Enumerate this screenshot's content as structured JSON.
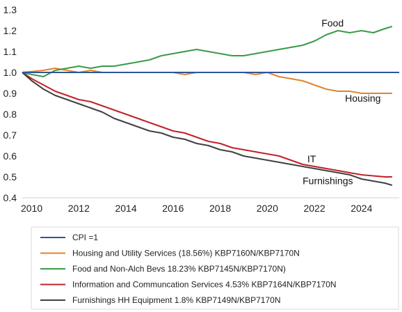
{
  "chart_data": {
    "type": "line",
    "ylim": [
      0.4,
      1.3
    ],
    "xlim": [
      2009.6,
      2025.6
    ],
    "yticks": [
      "0.4",
      "0.5",
      "0.6",
      "0.7",
      "0.8",
      "0.9",
      "1.0",
      "1.1",
      "1.2",
      "1.3"
    ],
    "xticks": [
      "2010",
      "2012",
      "2014",
      "2016",
      "2018",
      "2020",
      "2022",
      "2024"
    ],
    "grid": false,
    "legend_position": "bottom",
    "annotations": [
      {
        "text": "Food",
        "x": 2022.3,
        "y": 1.22
      },
      {
        "text": "Housing",
        "x": 2023.3,
        "y": 0.86
      },
      {
        "text": "IT",
        "x": 2021.7,
        "y": 0.57
      },
      {
        "text": "Furnishings",
        "x": 2021.5,
        "y": 0.465
      }
    ],
    "series": [
      {
        "name": "CPI =1",
        "color": "#2f5597",
        "x": [
          2009.6,
          2025.6
        ],
        "y": [
          1.0,
          1.0
        ]
      },
      {
        "name": "Housing and Utility Services  (18.56%) KBP7160N/KBP7170N",
        "color": "#e0842e",
        "x": [
          2009.6,
          2010.5,
          2011.0,
          2011.5,
          2012.0,
          2012.5,
          2013.0,
          2014.0,
          2015.0,
          2016.0,
          2016.5,
          2017.0,
          2018.0,
          2019.0,
          2019.5,
          2020.0,
          2020.5,
          2021.0,
          2021.5,
          2022.0,
          2022.5,
          2023.0,
          2023.5,
          2024.0,
          2024.5,
          2025.0,
          2025.3
        ],
        "y": [
          1.0,
          1.01,
          1.02,
          1.01,
          1.0,
          1.01,
          1.0,
          1.0,
          1.0,
          1.0,
          0.99,
          1.0,
          1.0,
          1.0,
          0.99,
          1.0,
          0.98,
          0.97,
          0.96,
          0.94,
          0.92,
          0.91,
          0.91,
          0.9,
          0.9,
          0.9,
          0.9
        ]
      },
      {
        "name": "Food and Non-Alch Bevs 18.23% KBP7145N/KBP7170N)",
        "color": "#3a9a47",
        "x": [
          2009.6,
          2010.0,
          2010.5,
          2011.0,
          2011.5,
          2012.0,
          2012.5,
          2013.0,
          2013.5,
          2014.0,
          2014.5,
          2015.0,
          2015.5,
          2016.0,
          2016.5,
          2017.0,
          2017.5,
          2018.0,
          2018.5,
          2019.0,
          2019.5,
          2020.0,
          2020.5,
          2021.0,
          2021.5,
          2022.0,
          2022.5,
          2023.0,
          2023.5,
          2024.0,
          2024.5,
          2025.0,
          2025.3
        ],
        "y": [
          1.0,
          0.99,
          0.98,
          1.01,
          1.02,
          1.03,
          1.02,
          1.03,
          1.03,
          1.04,
          1.05,
          1.06,
          1.08,
          1.09,
          1.1,
          1.11,
          1.1,
          1.09,
          1.08,
          1.08,
          1.09,
          1.1,
          1.11,
          1.12,
          1.13,
          1.15,
          1.18,
          1.2,
          1.19,
          1.2,
          1.19,
          1.21,
          1.22
        ]
      },
      {
        "name": "Information and Communcation Services 4.53% KBP7164N/KBP7170N",
        "color": "#c0212a",
        "x": [
          2009.6,
          2010.0,
          2010.5,
          2011.0,
          2011.5,
          2012.0,
          2012.5,
          2013.0,
          2013.5,
          2014.0,
          2014.5,
          2015.0,
          2015.5,
          2016.0,
          2016.5,
          2017.0,
          2017.5,
          2018.0,
          2018.5,
          2019.0,
          2019.5,
          2020.0,
          2020.5,
          2021.0,
          2021.5,
          2022.0,
          2022.5,
          2023.0,
          2023.5,
          2024.0,
          2024.5,
          2025.0,
          2025.3
        ],
        "y": [
          1.0,
          0.97,
          0.94,
          0.91,
          0.89,
          0.87,
          0.86,
          0.84,
          0.82,
          0.8,
          0.78,
          0.76,
          0.74,
          0.72,
          0.71,
          0.69,
          0.67,
          0.66,
          0.64,
          0.63,
          0.62,
          0.61,
          0.6,
          0.58,
          0.56,
          0.55,
          0.54,
          0.53,
          0.52,
          0.51,
          0.505,
          0.5,
          0.5
        ]
      },
      {
        "name": "Furnishings HH Equipment 1.8% KBP7149N/KBP7170N",
        "color": "#404040",
        "x": [
          2009.6,
          2010.0,
          2010.5,
          2011.0,
          2011.5,
          2012.0,
          2012.5,
          2013.0,
          2013.5,
          2014.0,
          2014.5,
          2015.0,
          2015.5,
          2016.0,
          2016.5,
          2017.0,
          2017.5,
          2018.0,
          2018.5,
          2019.0,
          2019.5,
          2020.0,
          2020.5,
          2021.0,
          2021.5,
          2022.0,
          2022.5,
          2023.0,
          2023.5,
          2024.0,
          2024.5,
          2025.0,
          2025.3
        ],
        "y": [
          1.0,
          0.96,
          0.92,
          0.89,
          0.87,
          0.85,
          0.83,
          0.81,
          0.78,
          0.76,
          0.74,
          0.72,
          0.71,
          0.69,
          0.68,
          0.66,
          0.65,
          0.63,
          0.62,
          0.6,
          0.59,
          0.58,
          0.57,
          0.56,
          0.55,
          0.54,
          0.53,
          0.52,
          0.51,
          0.49,
          0.48,
          0.47,
          0.46
        ]
      }
    ]
  }
}
